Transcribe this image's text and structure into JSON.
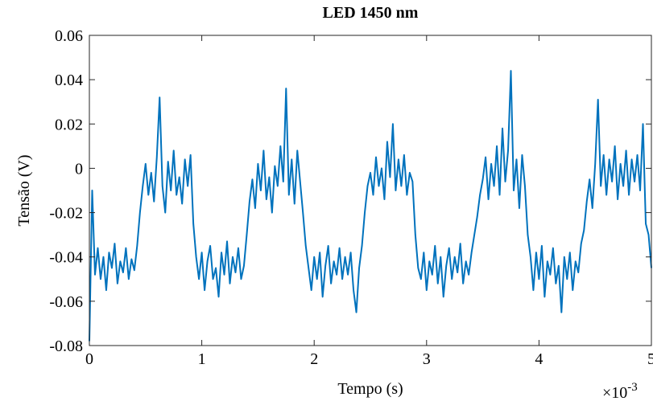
{
  "chart_data": {
    "type": "line",
    "title": "LED 1450 nm",
    "x_label": "Tempo (s)",
    "y_label": "Tensão (V)",
    "x_multiplier": {
      "base": "×10",
      "exponent": "-3"
    },
    "color": "#0072bd",
    "xlim": [
      0,
      0.005
    ],
    "ylim": [
      -0.08,
      0.06
    ],
    "xticks": [
      {
        "value": 0,
        "label": "0"
      },
      {
        "value": 0.001,
        "label": "1"
      },
      {
        "value": 0.002,
        "label": "2"
      },
      {
        "value": 0.003,
        "label": "3"
      },
      {
        "value": 0.004,
        "label": "4"
      },
      {
        "value": 0.005,
        "label": "5"
      }
    ],
    "yticks": [
      -0.08,
      -0.06,
      -0.04,
      -0.02,
      0,
      0.02,
      0.04,
      0.06
    ],
    "x": [
      0,
      2.5e-05,
      5e-05,
      7.5e-05,
      0.0001,
      0.000125,
      0.00015,
      0.000175,
      0.0002,
      0.000225,
      0.00025,
      0.000275,
      0.0003,
      0.000325,
      0.00035,
      0.000375,
      0.0004,
      0.000425,
      0.00045,
      0.000475,
      0.0005,
      0.000525,
      0.00055,
      0.000575,
      0.0006,
      0.000625,
      0.00065,
      0.000675,
      0.0007,
      0.000725,
      0.00075,
      0.000775,
      0.0008,
      0.000825,
      0.00085,
      0.000875,
      0.0009,
      0.000925,
      0.00095,
      0.000975,
      0.001,
      0.001025,
      0.00105,
      0.001075,
      0.0011,
      0.001125,
      0.00115,
      0.001175,
      0.0012,
      0.001225,
      0.00125,
      0.001275,
      0.0013,
      0.001325,
      0.00135,
      0.001375,
      0.0014,
      0.001425,
      0.00145,
      0.001475,
      0.0015,
      0.001525,
      0.00155,
      0.001575,
      0.0016,
      0.001625,
      0.00165,
      0.001675,
      0.0017,
      0.001725,
      0.00175,
      0.001775,
      0.0018,
      0.001825,
      0.00185,
      0.001875,
      0.0019,
      0.001925,
      0.00195,
      0.001975,
      0.002,
      0.002025,
      0.00205,
      0.002075,
      0.0021,
      0.002125,
      0.00215,
      0.002175,
      0.0022,
      0.002225,
      0.00225,
      0.002275,
      0.0023,
      0.002325,
      0.00235,
      0.002375,
      0.0024,
      0.002425,
      0.00245,
      0.002475,
      0.0025,
      0.002525,
      0.00255,
      0.002575,
      0.0026,
      0.002625,
      0.00265,
      0.002675,
      0.0027,
      0.002725,
      0.00275,
      0.002775,
      0.0028,
      0.002825,
      0.00285,
      0.002875,
      0.0029,
      0.002925,
      0.00295,
      0.002975,
      0.003,
      0.003025,
      0.00305,
      0.003075,
      0.0031,
      0.003125,
      0.00315,
      0.003175,
      0.0032,
      0.003225,
      0.00325,
      0.003275,
      0.0033,
      0.003325,
      0.00335,
      0.003375,
      0.0034,
      0.003425,
      0.00345,
      0.003475,
      0.0035,
      0.003525,
      0.00355,
      0.003575,
      0.0036,
      0.003625,
      0.00365,
      0.003675,
      0.0037,
      0.003725,
      0.00375,
      0.003775,
      0.0038,
      0.003825,
      0.00385,
      0.003875,
      0.0039,
      0.003925,
      0.00395,
      0.003975,
      0.004,
      0.004025,
      0.00405,
      0.004075,
      0.0041,
      0.004125,
      0.00415,
      0.004175,
      0.0042,
      0.004225,
      0.00425,
      0.004275,
      0.0043,
      0.004325,
      0.00435,
      0.004375,
      0.0044,
      0.004425,
      0.00445,
      0.004475,
      0.0045,
      0.004525,
      0.00455,
      0.004575,
      0.0046,
      0.004625,
      0.00465,
      0.004675,
      0.0047,
      0.004725,
      0.00475,
      0.004775,
      0.0048,
      0.004825,
      0.00485,
      0.004875,
      0.0049,
      0.004925,
      0.00495,
      0.004975,
      0.005
    ],
    "values": [
      -0.078,
      -0.01,
      -0.048,
      -0.036,
      -0.05,
      -0.04,
      -0.055,
      -0.038,
      -0.045,
      -0.034,
      -0.052,
      -0.042,
      -0.047,
      -0.036,
      -0.05,
      -0.041,
      -0.046,
      -0.035,
      -0.02,
      -0.008,
      0.002,
      -0.012,
      -0.002,
      -0.015,
      0.005,
      0.032,
      -0.008,
      -0.02,
      0.003,
      -0.01,
      0.008,
      -0.012,
      -0.004,
      -0.016,
      0.004,
      -0.008,
      0.006,
      -0.025,
      -0.04,
      -0.05,
      -0.038,
      -0.055,
      -0.042,
      -0.035,
      -0.05,
      -0.045,
      -0.058,
      -0.038,
      -0.048,
      -0.033,
      -0.052,
      -0.04,
      -0.047,
      -0.036,
      -0.05,
      -0.044,
      -0.03,
      -0.015,
      -0.005,
      -0.018,
      0.002,
      -0.01,
      0.008,
      -0.014,
      -0.004,
      -0.02,
      0.001,
      -0.008,
      0.01,
      -0.006,
      0.036,
      -0.012,
      0.004,
      -0.016,
      0.008,
      -0.006,
      -0.02,
      -0.035,
      -0.045,
      -0.055,
      -0.04,
      -0.05,
      -0.038,
      -0.058,
      -0.044,
      -0.035,
      -0.052,
      -0.042,
      -0.048,
      -0.036,
      -0.05,
      -0.04,
      -0.048,
      -0.038,
      -0.055,
      -0.065,
      -0.045,
      -0.035,
      -0.02,
      -0.008,
      -0.002,
      -0.012,
      0.005,
      -0.008,
      0,
      -0.014,
      0.012,
      -0.004,
      0.02,
      -0.01,
      0.004,
      -0.008,
      0.006,
      -0.012,
      -0.002,
      -0.006,
      -0.03,
      -0.045,
      -0.05,
      -0.038,
      -0.055,
      -0.042,
      -0.048,
      -0.035,
      -0.052,
      -0.04,
      -0.058,
      -0.044,
      -0.036,
      -0.05,
      -0.04,
      -0.047,
      -0.034,
      -0.052,
      -0.042,
      -0.048,
      -0.038,
      -0.03,
      -0.022,
      -0.012,
      -0.005,
      0.005,
      -0.014,
      0.002,
      -0.008,
      0.01,
      -0.012,
      0.018,
      -0.006,
      0.008,
      0.044,
      -0.01,
      0.004,
      -0.018,
      0.006,
      -0.008,
      -0.03,
      -0.04,
      -0.055,
      -0.038,
      -0.05,
      -0.035,
      -0.058,
      -0.042,
      -0.048,
      -0.036,
      -0.052,
      -0.044,
      -0.065,
      -0.04,
      -0.05,
      -0.038,
      -0.055,
      -0.042,
      -0.047,
      -0.034,
      -0.028,
      -0.015,
      -0.005,
      -0.018,
      0.002,
      0.031,
      -0.008,
      0.006,
      -0.012,
      0.004,
      -0.006,
      0.01,
      -0.014,
      0.002,
      -0.008,
      0.008,
      -0.012,
      0.004,
      -0.006,
      0.006,
      -0.01,
      0.02,
      -0.025,
      -0.03,
      -0.045
    ]
  }
}
